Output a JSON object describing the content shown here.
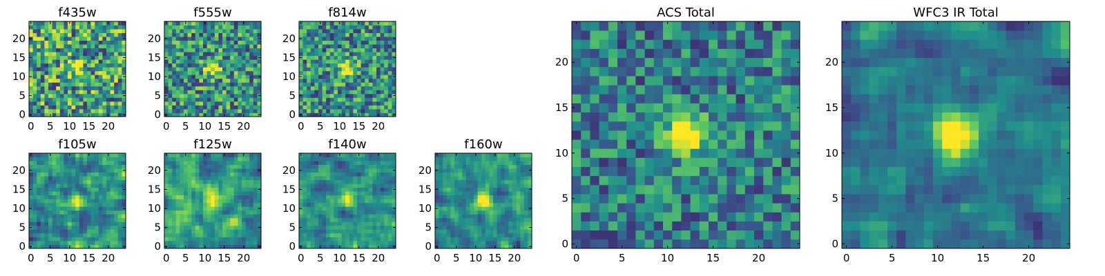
{
  "panels": [
    {
      "id": "f435w",
      "title": "f435w",
      "xticks": [
        "0",
        "5",
        "10",
        "15",
        "20"
      ],
      "yticks": [
        "0",
        "5",
        "10",
        "15",
        "20"
      ],
      "center_strength": 0.35,
      "smooth": 0,
      "seed": 11
    },
    {
      "id": "f555w",
      "title": "f555w",
      "xticks": [
        "0",
        "5",
        "10",
        "15",
        "20"
      ],
      "yticks": [
        "0",
        "5",
        "10",
        "15",
        "20"
      ],
      "center_strength": 0.55,
      "smooth": 0,
      "seed": 23
    },
    {
      "id": "f814w",
      "title": "f814w",
      "xticks": [
        "0",
        "5",
        "10",
        "15",
        "20"
      ],
      "yticks": [
        "0",
        "5",
        "10",
        "15",
        "20"
      ],
      "center_strength": 0.6,
      "smooth": 0,
      "seed": 37
    },
    {
      "id": "f105w",
      "title": "f105w",
      "xticks": [
        "0",
        "5",
        "10",
        "15",
        "20"
      ],
      "yticks": [
        "0",
        "5",
        "10",
        "15",
        "20"
      ],
      "center_strength": 0.45,
      "smooth": 1,
      "seed": 41
    },
    {
      "id": "f125w",
      "title": "f125w",
      "xticks": [
        "0",
        "5",
        "10",
        "15",
        "20"
      ],
      "yticks": [
        "0",
        "5",
        "10",
        "15",
        "20"
      ],
      "center_strength": 0.5,
      "smooth": 1,
      "seed": 53
    },
    {
      "id": "f140w",
      "title": "f140w",
      "xticks": [
        "0",
        "5",
        "10",
        "15",
        "20"
      ],
      "yticks": [
        "0",
        "5",
        "10",
        "15",
        "20"
      ],
      "center_strength": 0.55,
      "smooth": 1,
      "seed": 61
    },
    {
      "id": "f160w",
      "title": "f160w",
      "xticks": [
        "0",
        "5",
        "10",
        "15",
        "20"
      ],
      "yticks": [
        "0",
        "5",
        "10",
        "15",
        "20"
      ],
      "center_strength": 0.7,
      "smooth": 1,
      "seed": 79
    },
    {
      "id": "acs-total",
      "title": "ACS Total",
      "xticks": [
        "0",
        "5",
        "10",
        "15",
        "20"
      ],
      "yticks": [
        "0",
        "5",
        "10",
        "15",
        "20"
      ],
      "center_strength": 0.9,
      "smooth": 0,
      "seed": 97
    },
    {
      "id": "wfc3-ir-total",
      "title": "WFC3 IR Total",
      "xticks": [
        "0",
        "5",
        "10",
        "15",
        "20"
      ],
      "yticks": [
        "0",
        "5",
        "10",
        "15",
        "20"
      ],
      "center_strength": 0.9,
      "smooth": 1,
      "seed": 113
    }
  ],
  "image": {
    "grid_size": 25,
    "center": [
      12,
      12
    ],
    "colormap": [
      "#440154",
      "#3b528b",
      "#21918c",
      "#5ec962",
      "#fde725"
    ]
  }
}
